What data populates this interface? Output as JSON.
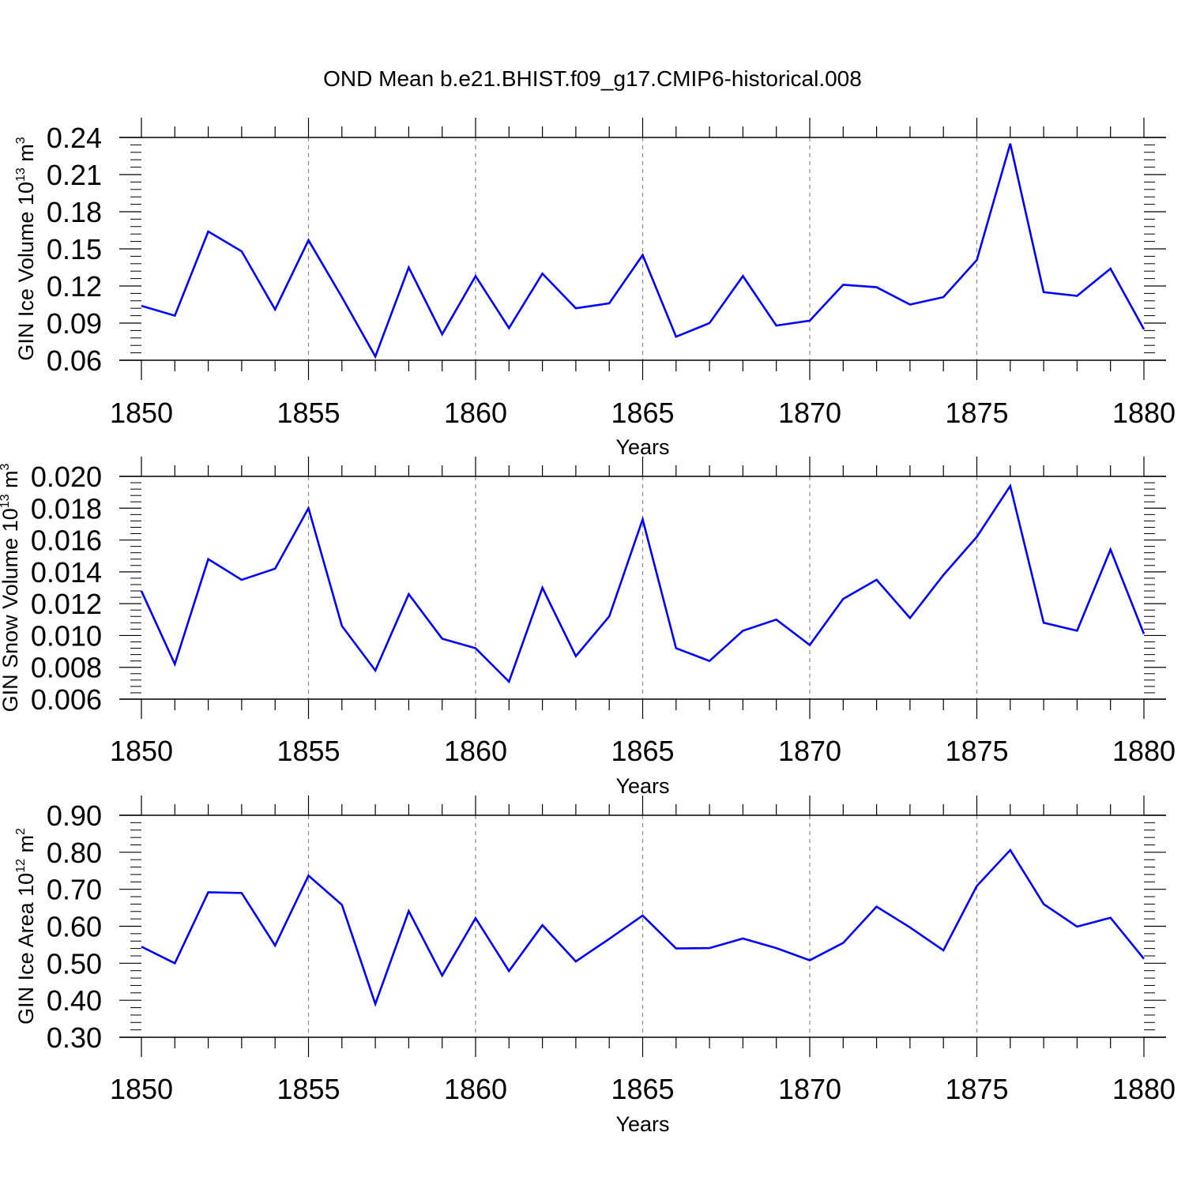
{
  "figure": {
    "title": "OND Mean b.e21.BHIST.f09_g17.CMIP6-historical.008",
    "line_color": "#0000ff"
  },
  "chart_data": [
    {
      "type": "line",
      "title": "",
      "xlabel": "Years",
      "ylabel": {
        "text": "GIN Ice Volume 10",
        "exp": "13",
        "unit": " m",
        "unit_exp": "3"
      },
      "xlim": [
        1850,
        1880
      ],
      "ylim": [
        0.06,
        0.24
      ],
      "yticks": [
        "0.06",
        "0.09",
        "0.12",
        "0.15",
        "0.18",
        "0.21",
        "0.24"
      ],
      "xticks": [
        "1850",
        "1855",
        "1860",
        "1865",
        "1870",
        "1875",
        "1880"
      ],
      "grid": "vertical dashed at major x ticks",
      "series": [
        {
          "x": [
            1850,
            1851,
            1852,
            1853,
            1854,
            1855,
            1856,
            1857,
            1858,
            1859,
            1860,
            1861,
            1862,
            1863,
            1864,
            1865,
            1866,
            1867,
            1868,
            1869,
            1870,
            1871,
            1872,
            1873,
            1874,
            1875,
            1876,
            1877,
            1878,
            1879,
            1880
          ],
          "values": [
            0.104,
            0.096,
            0.164,
            0.148,
            0.101,
            0.157,
            0.111,
            0.063,
            0.135,
            0.081,
            0.128,
            0.086,
            0.13,
            0.102,
            0.106,
            0.145,
            0.079,
            0.09,
            0.128,
            0.088,
            0.092,
            0.121,
            0.119,
            0.105,
            0.111,
            0.141,
            0.235,
            0.115,
            0.112,
            0.134,
            0.085
          ]
        }
      ]
    },
    {
      "type": "line",
      "title": "",
      "xlabel": "Years",
      "ylabel": {
        "text": "GIN Snow Volume 10",
        "exp": "13",
        "unit": " m",
        "unit_exp": "3"
      },
      "xlim": [
        1850,
        1880
      ],
      "ylim": [
        0.006,
        0.02
      ],
      "yticks": [
        "0.006",
        "0.008",
        "0.010",
        "0.012",
        "0.014",
        "0.016",
        "0.018",
        "0.020"
      ],
      "xticks": [
        "1850",
        "1855",
        "1860",
        "1865",
        "1870",
        "1875",
        "1880"
      ],
      "grid": "vertical dashed at major x ticks",
      "series": [
        {
          "x": [
            1850,
            1851,
            1852,
            1853,
            1854,
            1855,
            1856,
            1857,
            1858,
            1859,
            1860,
            1861,
            1862,
            1863,
            1864,
            1865,
            1866,
            1867,
            1868,
            1869,
            1870,
            1871,
            1872,
            1873,
            1874,
            1875,
            1876,
            1877,
            1878,
            1879,
            1880
          ],
          "values": [
            0.0128,
            0.0082,
            0.0148,
            0.0135,
            0.0142,
            0.018,
            0.0106,
            0.0078,
            0.0126,
            0.0098,
            0.0092,
            0.0071,
            0.013,
            0.0087,
            0.0112,
            0.0173,
            0.0092,
            0.0084,
            0.0103,
            0.011,
            0.0094,
            0.0123,
            0.0135,
            0.0111,
            0.0138,
            0.0162,
            0.0194,
            0.0108,
            0.0103,
            0.0154,
            0.0101
          ]
        }
      ]
    },
    {
      "type": "line",
      "title": "",
      "xlabel": "Years",
      "ylabel": {
        "text": "GIN Ice Area 10",
        "exp": "12",
        "unit": " m",
        "unit_exp": "2"
      },
      "xlim": [
        1850,
        1880
      ],
      "ylim": [
        0.3,
        0.9
      ],
      "yticks": [
        "0.30",
        "0.40",
        "0.50",
        "0.60",
        "0.70",
        "0.80",
        "0.90"
      ],
      "xticks": [
        "1850",
        "1855",
        "1860",
        "1865",
        "1870",
        "1875",
        "1880"
      ],
      "grid": "vertical dashed at major x ticks",
      "series": [
        {
          "x": [
            1850,
            1851,
            1852,
            1853,
            1854,
            1855,
            1856,
            1857,
            1858,
            1859,
            1860,
            1861,
            1862,
            1863,
            1864,
            1865,
            1866,
            1867,
            1868,
            1869,
            1870,
            1871,
            1872,
            1873,
            1874,
            1875,
            1876,
            1877,
            1878,
            1879,
            1880
          ],
          "values": [
            0.545,
            0.5,
            0.692,
            0.69,
            0.548,
            0.737,
            0.658,
            0.39,
            0.641,
            0.467,
            0.622,
            0.479,
            0.603,
            0.505,
            0.566,
            0.629,
            0.54,
            0.541,
            0.567,
            0.541,
            0.508,
            0.555,
            0.653,
            0.597,
            0.535,
            0.709,
            0.806,
            0.66,
            0.599,
            0.623,
            0.512
          ]
        }
      ]
    }
  ]
}
